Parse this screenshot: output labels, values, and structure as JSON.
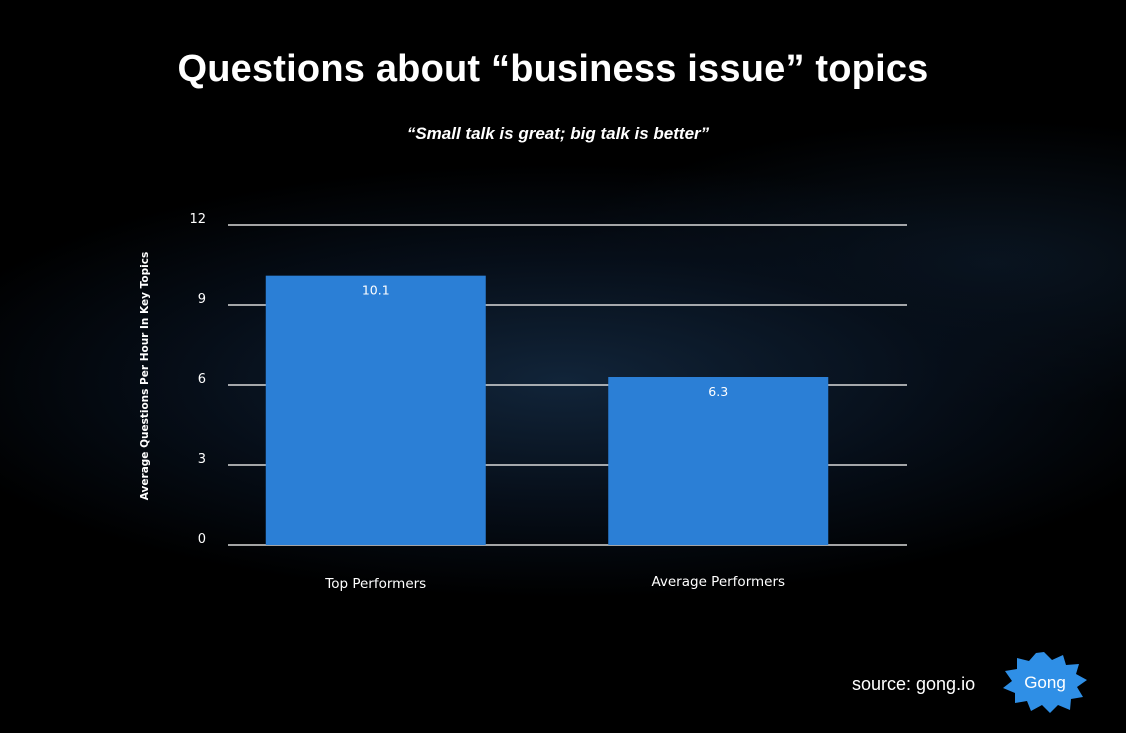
{
  "title": "Questions about “business issue” topics",
  "subtitle": "“Small talk is great; big talk is better”",
  "source": "source: gong.io",
  "logo_text": "Gong",
  "colors": {
    "bar": "#2b7fd6",
    "gridline": "#d9d9d9",
    "text": "#ffffff",
    "badge": "#2f8fe6"
  },
  "chart_data": {
    "type": "bar",
    "categories": [
      "Top Performers",
      "Average Performers"
    ],
    "values": [
      10.1,
      6.3
    ],
    "data_labels": [
      "10.1",
      "6.3"
    ],
    "ylabel": "Average Questions Per Hour In Key Topics",
    "xlabel": "",
    "ylim": [
      0,
      12
    ],
    "yticks": [
      0,
      3,
      6,
      9,
      12
    ],
    "grid": true,
    "legend": "none"
  }
}
